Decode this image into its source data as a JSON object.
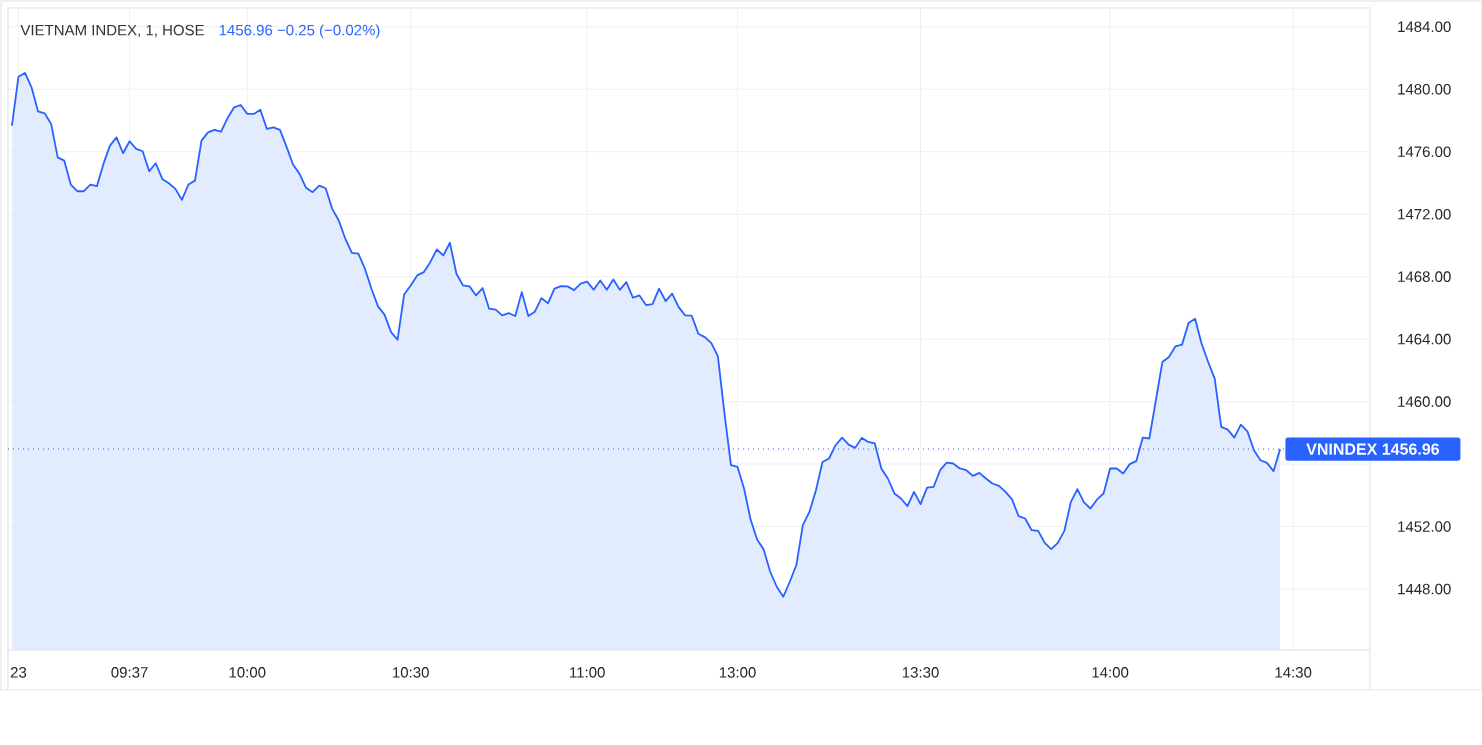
{
  "chart_data": {
    "type": "area",
    "title": "VIETNAM INDEX, 1, HOSE",
    "subtitle": "1456.96 −0.25 (−0.02%)",
    "categories": [
      null,
      "23",
      null,
      null,
      null,
      null,
      null,
      null,
      null,
      null,
      null,
      null,
      null,
      null,
      null,
      null,
      null,
      null,
      "09:37",
      null,
      null,
      null,
      null,
      null,
      null,
      null,
      null,
      null,
      null,
      null,
      null,
      null,
      null,
      null,
      null,
      null,
      "10:00",
      null,
      null,
      null,
      null,
      null,
      null,
      null,
      null,
      null,
      null,
      null,
      null,
      null,
      null,
      null,
      null,
      null,
      null,
      null,
      null,
      null,
      null,
      null,
      null,
      "10:30",
      null,
      null,
      null,
      null,
      null,
      null,
      null,
      null,
      null,
      null,
      null,
      null,
      null,
      null,
      null,
      null,
      null,
      null,
      null,
      null,
      null,
      null,
      null,
      null,
      null,
      null,
      "11:00",
      null,
      null,
      null,
      null,
      null,
      null,
      null,
      null,
      null,
      null,
      null,
      null,
      null,
      null,
      null,
      null,
      null,
      null,
      null,
      null,
      null,
      null,
      "13:00",
      null,
      null,
      null,
      null,
      null,
      null,
      null,
      null,
      null,
      null,
      null,
      null,
      null,
      null,
      null,
      null,
      null,
      null,
      null,
      null,
      null,
      null,
      null,
      null,
      null,
      null,
      null,
      "13:30",
      null,
      null,
      null,
      null,
      null,
      null,
      null,
      null,
      null,
      null,
      null,
      null,
      null,
      null,
      null,
      null,
      null,
      null,
      null,
      null,
      null,
      null,
      null,
      null,
      null,
      null,
      null,
      null,
      "14:00",
      null,
      null,
      null,
      null,
      null,
      null,
      null,
      null,
      null,
      null,
      null,
      null,
      null,
      null,
      null,
      null,
      null,
      null,
      null,
      null,
      null,
      null,
      null,
      null,
      null,
      null,
      null,
      "14:30"
    ],
    "series": [
      {
        "color": "#2962ff",
        "values": [
          1477.67,
          1480.8,
          1481.04,
          1480.12,
          1478.58,
          1478.46,
          1477.78,
          1475.64,
          1475.43,
          1473.9,
          1473.47,
          1473.47,
          1473.9,
          1473.79,
          1475.22,
          1476.39,
          1476.92,
          1475.9,
          1476.67,
          1476.18,
          1476.03,
          1474.75,
          1475.26,
          1474.26,
          1473.98,
          1473.62,
          1472.92,
          1473.9,
          1474.15,
          1476.71,
          1477.24,
          1477.4,
          1477.29,
          1478.16,
          1478.84,
          1478.99,
          1478.42,
          1478.42,
          1478.69,
          1477.46,
          1477.56,
          1477.4,
          1476.33,
          1475.18,
          1474.58,
          1473.69,
          1473.41,
          1473.83,
          1473.66,
          1472.34,
          1471.6,
          1470.43,
          1469.53,
          1469.47,
          1468.51,
          1467.23,
          1466.1,
          1465.57,
          1464.45,
          1463.97,
          1466.86,
          1467.44,
          1468.08,
          1468.29,
          1468.93,
          1469.74,
          1469.36,
          1470.17,
          1468.19,
          1467.44,
          1467.38,
          1466.8,
          1467.27,
          1465.95,
          1465.89,
          1465.52,
          1465.67,
          1465.48,
          1467.01,
          1465.48,
          1465.76,
          1466.63,
          1466.29,
          1467.23,
          1467.39,
          1467.38,
          1467.14,
          1467.55,
          1467.68,
          1467.16,
          1467.76,
          1467.16,
          1467.82,
          1467.16,
          1467.65,
          1466.65,
          1466.8,
          1466.18,
          1466.24,
          1467.23,
          1466.44,
          1466.91,
          1466.05,
          1465.52,
          1465.5,
          1464.35,
          1464.13,
          1463.75,
          1462.9,
          1459.27,
          1455.93,
          1455.82,
          1454.44,
          1452.45,
          1451.18,
          1450.54,
          1449.11,
          1448.15,
          1447.51,
          1448.47,
          1449.54,
          1452.09,
          1452.94,
          1454.33,
          1456.14,
          1456.36,
          1457.21,
          1457.7,
          1457.25,
          1457.04,
          1457.68,
          1457.42,
          1457.32,
          1455.72,
          1455.08,
          1454.12,
          1453.8,
          1453.31,
          1454.22,
          1453.44,
          1454.5,
          1454.54,
          1455.61,
          1456.1,
          1456.04,
          1455.72,
          1455.61,
          1455.25,
          1455.44,
          1455.08,
          1454.76,
          1454.61,
          1454.22,
          1453.74,
          1452.67,
          1452.52,
          1451.77,
          1451.73,
          1450.96,
          1450.56,
          1450.96,
          1451.73,
          1453.58,
          1454.4,
          1453.55,
          1453.16,
          1453.74,
          1454.12,
          1455.72,
          1455.72,
          1455.4,
          1456.0,
          1456.19,
          1457.7,
          1457.64,
          1460.09,
          1462.54,
          1462.86,
          1463.54,
          1463.65,
          1465.03,
          1465.31,
          1463.71,
          1462.54,
          1461.47,
          1458.38,
          1458.21,
          1457.7,
          1458.53,
          1458.1,
          1456.89,
          1456.25,
          1456.08,
          1455.55,
          1456.96,
          null,
          null
        ]
      }
    ],
    "ylim": [
      1444.1,
      1485.2
    ],
    "yticks": [
      {
        "value": 1448,
        "label": "1448.00"
      },
      {
        "value": 1452,
        "label": "1452.00"
      },
      {
        "value": 1456,
        "label": null
      },
      {
        "value": 1460,
        "label": "1460.00"
      },
      {
        "value": 1464,
        "label": "1464.00"
      },
      {
        "value": 1468,
        "label": "1468.00"
      },
      {
        "value": 1472,
        "label": "1472.00"
      },
      {
        "value": 1476,
        "label": "1476.00"
      },
      {
        "value": 1480,
        "label": "1480.00"
      },
      {
        "value": 1484,
        "label": "1484.00"
      }
    ],
    "ref_lines": [
      {
        "axis": "y",
        "value": 1456.96,
        "label": "VNINDEX 1456.96",
        "color": "#2962ff",
        "line_style": "dotted"
      }
    ],
    "grid": true
  }
}
